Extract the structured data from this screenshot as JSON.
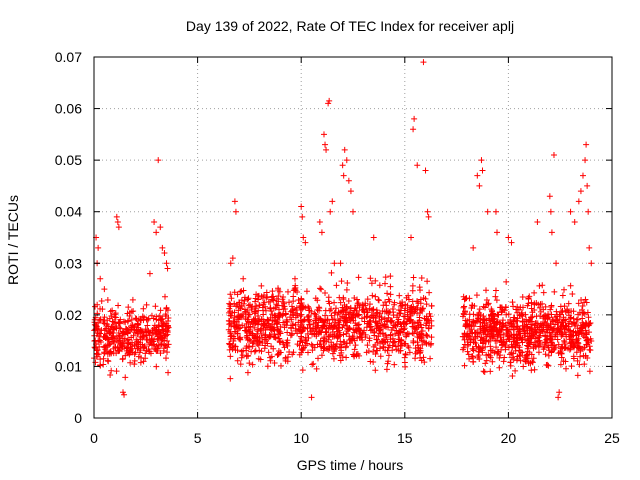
{
  "chart_data": {
    "type": "scatter",
    "title": "Day 139 of 2022, Rate Of TEC Index for receiver aplj",
    "xlabel": "GPS time / hours",
    "ylabel": "ROTI / TECUs",
    "xlim": [
      0,
      25
    ],
    "ylim": [
      0,
      0.07
    ],
    "xticks": [
      "0",
      "5",
      "10",
      "15",
      "20",
      "25"
    ],
    "yticks": [
      "0",
      "0.01",
      "0.02",
      "0.03",
      "0.04",
      "0.05",
      "0.06",
      "0.07"
    ],
    "grid": true,
    "marker": "+",
    "color": "#ff0000",
    "point_groups": [
      {
        "x_range": [
          0.0,
          3.6
        ],
        "y_range": [
          0.006,
          0.026
        ],
        "count": 420
      },
      {
        "x_range": [
          6.5,
          16.3
        ],
        "y_range": [
          0.006,
          0.03
        ],
        "count": 1150
      },
      {
        "x_range": [
          17.8,
          24.0
        ],
        "y_range": [
          0.006,
          0.028
        ],
        "count": 820
      }
    ],
    "points": [
      [
        0.1,
        0.035
      ],
      [
        0.2,
        0.033
      ],
      [
        0.15,
        0.03
      ],
      [
        0.3,
        0.027
      ],
      [
        0.5,
        0.025
      ],
      [
        1.1,
        0.039
      ],
      [
        1.15,
        0.038
      ],
      [
        1.2,
        0.037
      ],
      [
        1.4,
        0.005
      ],
      [
        1.45,
        0.0045
      ],
      [
        2.7,
        0.028
      ],
      [
        2.9,
        0.038
      ],
      [
        3.0,
        0.036
      ],
      [
        3.1,
        0.05
      ],
      [
        3.2,
        0.037
      ],
      [
        3.3,
        0.033
      ],
      [
        3.4,
        0.032
      ],
      [
        3.5,
        0.03
      ],
      [
        3.55,
        0.029
      ],
      [
        6.6,
        0.03
      ],
      [
        6.7,
        0.031
      ],
      [
        6.8,
        0.042
      ],
      [
        6.85,
        0.04
      ],
      [
        7.2,
        0.027
      ],
      [
        9.7,
        0.027
      ],
      [
        10.0,
        0.041
      ],
      [
        10.05,
        0.039
      ],
      [
        10.1,
        0.035
      ],
      [
        10.2,
        0.034
      ],
      [
        10.5,
        0.004
      ],
      [
        10.9,
        0.038
      ],
      [
        11.0,
        0.036
      ],
      [
        11.1,
        0.055
      ],
      [
        11.15,
        0.053
      ],
      [
        11.2,
        0.052
      ],
      [
        11.3,
        0.061
      ],
      [
        11.35,
        0.0615
      ],
      [
        11.4,
        0.04
      ],
      [
        11.5,
        0.042
      ],
      [
        11.6,
        0.03
      ],
      [
        11.9,
        0.03
      ],
      [
        12.0,
        0.049
      ],
      [
        12.05,
        0.047
      ],
      [
        12.1,
        0.052
      ],
      [
        12.2,
        0.05
      ],
      [
        12.3,
        0.046
      ],
      [
        12.4,
        0.044
      ],
      [
        12.5,
        0.04
      ],
      [
        13.5,
        0.035
      ],
      [
        15.3,
        0.035
      ],
      [
        15.4,
        0.056
      ],
      [
        15.45,
        0.058
      ],
      [
        15.6,
        0.049
      ],
      [
        15.9,
        0.069
      ],
      [
        16.0,
        0.048
      ],
      [
        16.1,
        0.04
      ],
      [
        16.15,
        0.039
      ],
      [
        18.3,
        0.033
      ],
      [
        18.5,
        0.047
      ],
      [
        18.6,
        0.045
      ],
      [
        18.7,
        0.05
      ],
      [
        18.75,
        0.048
      ],
      [
        19.0,
        0.04
      ],
      [
        19.4,
        0.04
      ],
      [
        19.45,
        0.036
      ],
      [
        20.0,
        0.035
      ],
      [
        20.15,
        0.034
      ],
      [
        21.4,
        0.038
      ],
      [
        22.0,
        0.043
      ],
      [
        22.05,
        0.04
      ],
      [
        22.1,
        0.036
      ],
      [
        22.2,
        0.051
      ],
      [
        22.3,
        0.03
      ],
      [
        22.4,
        0.004
      ],
      [
        22.45,
        0.005
      ],
      [
        23.0,
        0.04
      ],
      [
        23.2,
        0.038
      ],
      [
        23.4,
        0.042
      ],
      [
        23.5,
        0.044
      ],
      [
        23.6,
        0.047
      ],
      [
        23.7,
        0.05
      ],
      [
        23.75,
        0.053
      ],
      [
        23.8,
        0.045
      ],
      [
        23.85,
        0.04
      ],
      [
        23.9,
        0.033
      ],
      [
        24.0,
        0.03
      ]
    ]
  }
}
